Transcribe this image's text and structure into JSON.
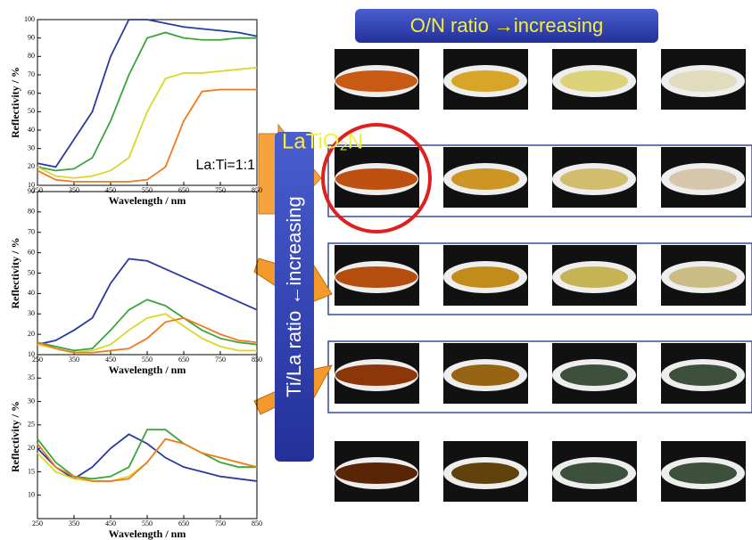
{
  "chart_data": [
    {
      "type": "line",
      "ylabel": "Reflectivity / %",
      "xlabel": "Wavelength / nm",
      "x": [
        250,
        300,
        350,
        400,
        450,
        500,
        550,
        600,
        650,
        700,
        750,
        800,
        850
      ],
      "xlim": [
        250,
        850
      ],
      "xticks": [
        250,
        350,
        450,
        550,
        650,
        750,
        850
      ],
      "ylim": [
        10,
        100
      ],
      "yticks": [
        10,
        20,
        30,
        40,
        50,
        60,
        70,
        80,
        90,
        100
      ],
      "annotation": "La:Ti=1:1",
      "series": [
        {
          "color": "#2b3a9e",
          "values": [
            22,
            20,
            35,
            50,
            80,
            100,
            100,
            98,
            96,
            95,
            94,
            93,
            91
          ]
        },
        {
          "color": "#3aa63a",
          "values": [
            20,
            18,
            19,
            25,
            45,
            70,
            90,
            93,
            90,
            89,
            89,
            90,
            90
          ]
        },
        {
          "color": "#d8d82a",
          "values": [
            20,
            15,
            14,
            15,
            18,
            25,
            50,
            68,
            71,
            71,
            72,
            73,
            74
          ]
        },
        {
          "color": "#f07a20",
          "values": [
            18,
            13,
            12,
            12,
            12,
            12,
            13,
            20,
            45,
            61,
            62,
            62,
            62
          ]
        }
      ]
    },
    {
      "type": "line",
      "ylabel": "Reflectivity / %",
      "xlabel": "Wavelength / nm",
      "x": [
        250,
        300,
        350,
        400,
        450,
        500,
        550,
        600,
        650,
        700,
        750,
        800,
        850
      ],
      "xlim": [
        250,
        850
      ],
      "xticks": [
        250,
        350,
        450,
        550,
        650,
        750,
        850
      ],
      "ylim": [
        10,
        90
      ],
      "yticks": [
        10,
        20,
        30,
        40,
        50,
        60,
        70,
        80,
        90
      ],
      "series": [
        {
          "color": "#2b3a9e",
          "values": [
            15,
            17,
            22,
            28,
            45,
            57,
            56,
            52,
            48,
            44,
            40,
            36,
            32
          ]
        },
        {
          "color": "#3aa63a",
          "values": [
            16,
            14,
            12,
            13,
            22,
            32,
            37,
            34,
            28,
            22,
            18,
            16,
            15
          ]
        },
        {
          "color": "#d8d82a",
          "values": [
            15,
            13,
            11,
            12,
            15,
            22,
            28,
            30,
            24,
            18,
            14,
            12,
            12
          ]
        },
        {
          "color": "#f07a20",
          "values": [
            16,
            13,
            11,
            11,
            12,
            13,
            18,
            26,
            28,
            24,
            20,
            17,
            16
          ]
        }
      ]
    },
    {
      "type": "line",
      "ylabel": "Reflectivity / %",
      "xlabel": "Wavelength / nm",
      "x": [
        250,
        300,
        350,
        400,
        450,
        500,
        550,
        600,
        650,
        700,
        750,
        800,
        850
      ],
      "xlim": [
        250,
        850
      ],
      "xticks": [
        250,
        350,
        450,
        550,
        650,
        750,
        850
      ],
      "ylim": [
        5,
        40
      ],
      "yticks": [
        10,
        15,
        20,
        25,
        30,
        35
      ],
      "series": [
        {
          "color": "#2b3a9e",
          "values": [
            20,
            16,
            13.5,
            16,
            20,
            23,
            21,
            18,
            16,
            15,
            14,
            13.5,
            13
          ]
        },
        {
          "color": "#3aa63a",
          "values": [
            22,
            17,
            14,
            13.5,
            14,
            16,
            24,
            24,
            21,
            19,
            17,
            16,
            16
          ]
        },
        {
          "color": "#d8d82a",
          "values": [
            19,
            15,
            13.5,
            13,
            13,
            14,
            17,
            22,
            21,
            19,
            18,
            17,
            16
          ]
        },
        {
          "color": "#f07a20",
          "values": [
            21,
            16,
            14,
            13,
            13,
            13.5,
            17,
            22,
            21,
            19,
            18,
            17,
            16
          ]
        }
      ]
    }
  ],
  "labels": {
    "on_ratio": "O/N ratio →increasing",
    "tila_ratio": "Ti/La ratio ←increasing",
    "compound": "LaTiO₂N"
  }
}
